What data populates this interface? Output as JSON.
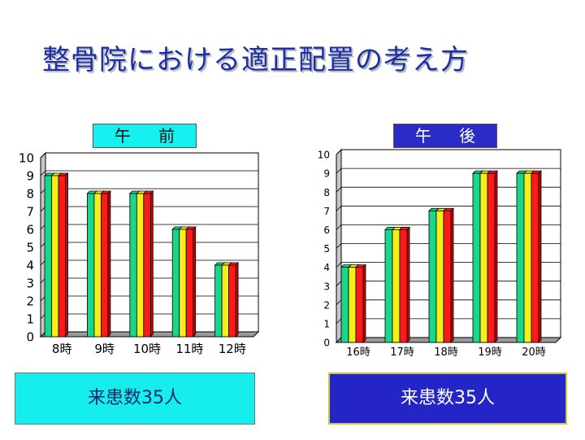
{
  "slide": {
    "title": "整骨院における適正配置の考え方",
    "am_label": "午 前",
    "pm_label": "午 後",
    "am_footer": "来患数35人",
    "pm_footer": "来患数35人"
  },
  "colors": {
    "green": "#18d68a",
    "yellow": "#f3ef1a",
    "red": "#ff1a1a"
  },
  "chart_data": [
    {
      "type": "bar",
      "categories": [
        "8時",
        "9時",
        "10時",
        "11時",
        "12時"
      ],
      "series": [
        {
          "values": [
            9,
            8,
            8,
            6,
            4
          ]
        },
        {
          "values": [
            9,
            8,
            8,
            6,
            4
          ]
        },
        {
          "values": [
            9,
            8,
            8,
            6,
            4
          ]
        }
      ],
      "ylim": [
        0,
        10
      ],
      "yticks": [
        "0",
        "1",
        "2",
        "3",
        "4",
        "5",
        "6",
        "7",
        "8",
        "9",
        "10"
      ],
      "grid": true
    },
    {
      "type": "bar",
      "categories": [
        "16時",
        "17時",
        "18時",
        "19時",
        "20時"
      ],
      "series": [
        {
          "values": [
            4,
            6,
            7,
            9,
            9
          ]
        },
        {
          "values": [
            4,
            6,
            7,
            9,
            9
          ]
        },
        {
          "values": [
            4,
            6,
            7,
            9,
            9
          ]
        }
      ],
      "ylim": [
        0,
        10
      ],
      "yticks": [
        "0",
        "1",
        "2",
        "3",
        "4",
        "5",
        "6",
        "7",
        "8",
        "9",
        "10"
      ],
      "grid": true
    }
  ]
}
